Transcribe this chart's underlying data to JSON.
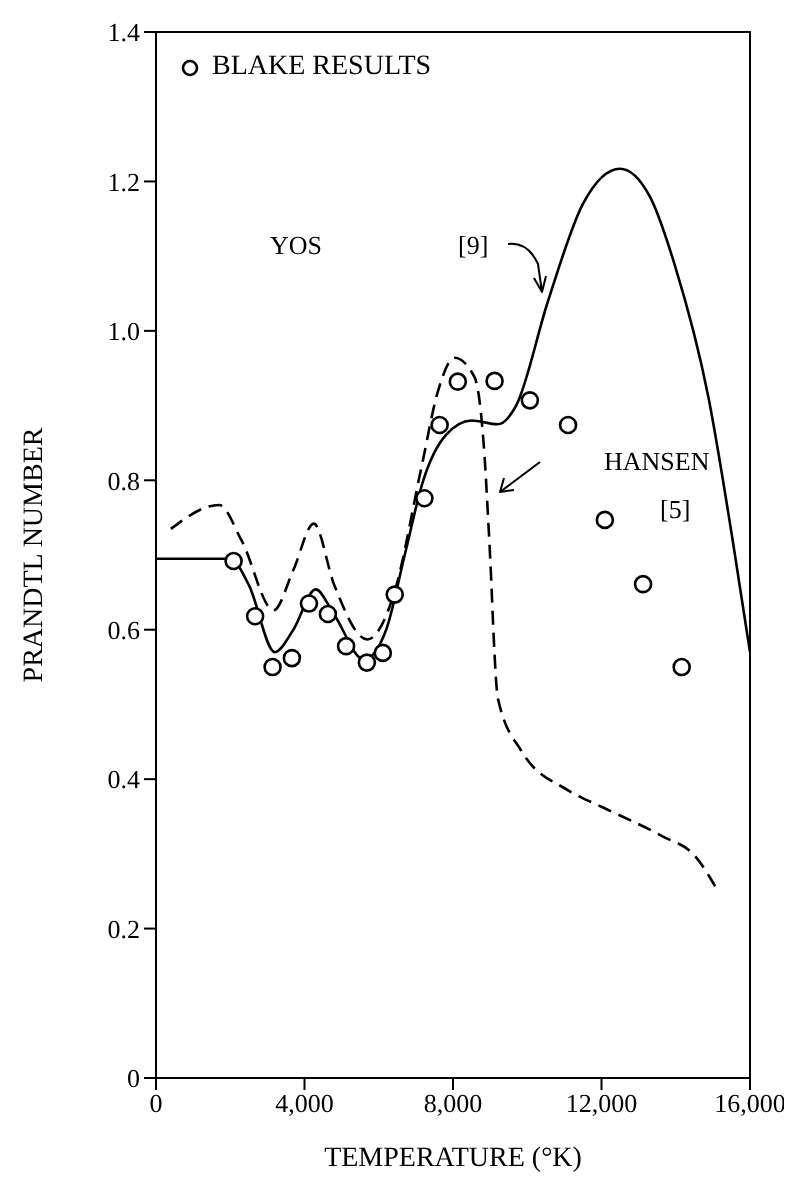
{
  "chart_data": {
    "type": "line",
    "xlabel": "TEMPERATURE (°K)",
    "ylabel": "PRANDTL NUMBER",
    "xlim": [
      0,
      16000
    ],
    "xticks": [
      0,
      {
        "value": 4000,
        "label": "4,000"
      },
      {
        "value": 8000,
        "label": "8,000"
      },
      {
        "value": 12000,
        "label": "12,000"
      },
      {
        "value": 16000,
        "label": "16,000"
      }
    ],
    "ylim": [
      0,
      1.4
    ],
    "yticks": [
      0,
      0.2,
      0.4,
      0.6,
      0.8,
      {
        "value": 1,
        "label": "1.0"
      },
      1.2,
      1.4
    ],
    "grid": false,
    "legend": "top left",
    "annotations": [
      "YOS",
      "[9]",
      "HANSEN",
      "[5]"
    ],
    "series": [
      {
        "line_style": "solid",
        "marker": "none",
        "color": "#000000",
        "x": [
          0,
          1000,
          2000,
          2500,
          3200,
          3700,
          4300,
          4800,
          5600,
          6200,
          6700,
          7200,
          7800,
          8500,
          9200,
          9700,
          10560,
          11500,
          12500,
          13300,
          13980,
          14880,
          15510,
          16000
        ],
        "values": [
          0.695,
          0.695,
          0.695,
          0.66,
          0.57,
          0.6,
          0.654,
          0.62,
          0.56,
          0.6,
          0.7,
          0.8,
          0.86,
          0.88,
          0.875,
          0.9,
          1.04,
          1.17,
          1.217,
          1.18,
          1.087,
          0.911,
          0.727,
          0.57
        ]
      },
      {
        "line_style": "dashed",
        "marker": "none",
        "color": "#000000",
        "x": [
          400,
          1700,
          2300,
          3170,
          3700,
          4250,
          4800,
          5690,
          6410,
          7140,
          7600,
          8040,
          8580,
          8850,
          8970,
          9210,
          9840,
          11100,
          12000,
          13620,
          14520,
          15150
        ],
        "values": [
          0.735,
          0.767,
          0.72,
          0.626,
          0.68,
          0.742,
          0.66,
          0.587,
          0.648,
          0.815,
          0.92,
          0.964,
          0.938,
          0.832,
          0.727,
          0.508,
          0.438,
          0.385,
          0.363,
          0.324,
          0.297,
          0.249
        ]
      },
      {
        "type": "scatter",
        "name": "BLAKE RESULTS",
        "marker": "circle",
        "color": "#000000",
        "x": [
          2090,
          2670,
          3140,
          3660,
          4120,
          4630,
          5120,
          5680,
          6110,
          6430,
          7230,
          7640,
          8130,
          9120,
          10070,
          11100,
          12090,
          13120,
          14160
        ],
        "values": [
          0.692,
          0.618,
          0.55,
          0.562,
          0.635,
          0.621,
          0.578,
          0.556,
          0.569,
          0.647,
          0.776,
          0.874,
          0.932,
          0.933,
          0.907,
          0.874,
          0.747,
          0.661,
          0.55
        ]
      }
    ]
  }
}
